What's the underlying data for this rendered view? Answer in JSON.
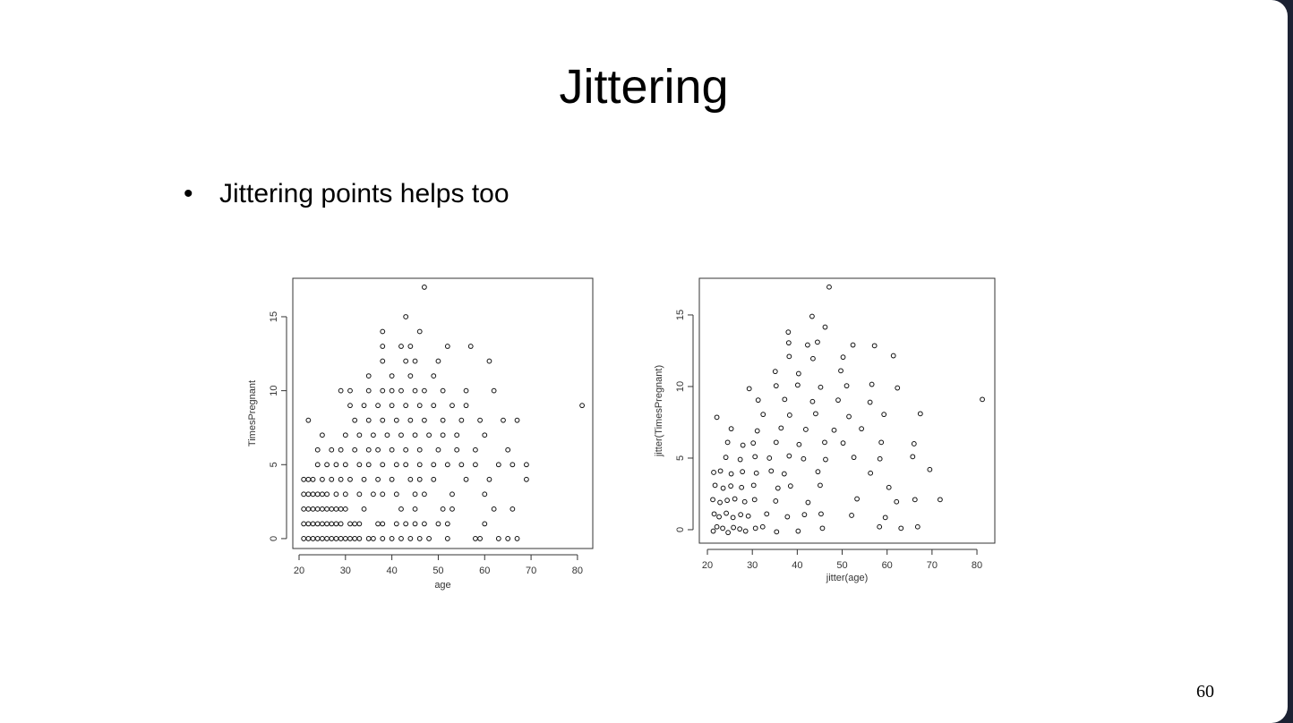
{
  "slide": {
    "title": "Jittering",
    "bullet": "Jittering points helps too",
    "page_number": "60"
  },
  "chart_data": [
    {
      "type": "scatter",
      "xlabel": "age",
      "ylabel": "TimesPregnant",
      "xlim": [
        18.65,
        83.3
      ],
      "ylim": [
        -0.67,
        17.6
      ],
      "xticks": [
        20,
        30,
        40,
        50,
        60,
        70,
        80
      ],
      "yticks": [
        0,
        5,
        10,
        15
      ],
      "x": [
        21,
        22,
        23,
        24,
        25,
        26,
        27,
        28,
        29,
        30,
        31,
        32,
        33,
        35,
        36,
        38,
        40,
        42,
        44,
        46,
        48,
        52,
        58,
        59,
        63,
        65,
        67,
        21,
        22,
        23,
        24,
        25,
        26,
        27,
        28,
        29,
        31,
        32,
        33,
        37,
        38,
        41,
        43,
        45,
        47,
        50,
        52,
        60,
        21,
        22,
        23,
        24,
        25,
        26,
        27,
        28,
        29,
        30,
        34,
        42,
        45,
        51,
        53,
        62,
        66,
        21,
        22,
        23,
        24,
        25,
        26,
        28,
        30,
        33,
        36,
        38,
        41,
        45,
        47,
        53,
        60,
        21,
        22,
        23,
        25,
        27,
        29,
        31,
        34,
        37,
        40,
        44,
        46,
        49,
        56,
        61,
        69,
        24,
        26,
        28,
        30,
        33,
        35,
        38,
        41,
        43,
        46,
        49,
        52,
        55,
        58,
        63,
        66,
        69,
        24,
        27,
        29,
        32,
        35,
        37,
        40,
        43,
        46,
        50,
        54,
        58,
        65,
        25,
        30,
        33,
        36,
        39,
        42,
        45,
        48,
        51,
        54,
        60,
        22,
        32,
        35,
        38,
        41,
        44,
        47,
        51,
        55,
        59,
        64,
        67,
        31,
        34,
        37,
        40,
        43,
        46,
        49,
        53,
        56,
        81,
        29,
        31,
        35,
        38,
        40,
        42,
        45,
        47,
        51,
        56,
        62,
        35,
        40,
        44,
        49,
        38,
        43,
        45,
        50,
        61,
        38,
        42,
        44,
        52,
        57,
        38,
        46,
        43,
        47
      ],
      "y": [
        0,
        0,
        0,
        0,
        0,
        0,
        0,
        0,
        0,
        0,
        0,
        0,
        0,
        0,
        0,
        0,
        0,
        0,
        0,
        0,
        0,
        0,
        0,
        0,
        0,
        0,
        0,
        1,
        1,
        1,
        1,
        1,
        1,
        1,
        1,
        1,
        1,
        1,
        1,
        1,
        1,
        1,
        1,
        1,
        1,
        1,
        1,
        1,
        2,
        2,
        2,
        2,
        2,
        2,
        2,
        2,
        2,
        2,
        2,
        2,
        2,
        2,
        2,
        2,
        2,
        3,
        3,
        3,
        3,
        3,
        3,
        3,
        3,
        3,
        3,
        3,
        3,
        3,
        3,
        3,
        3,
        4,
        4,
        4,
        4,
        4,
        4,
        4,
        4,
        4,
        4,
        4,
        4,
        4,
        4,
        4,
        4,
        5,
        5,
        5,
        5,
        5,
        5,
        5,
        5,
        5,
        5,
        5,
        5,
        5,
        5,
        5,
        5,
        5,
        6,
        6,
        6,
        6,
        6,
        6,
        6,
        6,
        6,
        6,
        6,
        6,
        6,
        7,
        7,
        7,
        7,
        7,
        7,
        7,
        7,
        7,
        7,
        7,
        8,
        8,
        8,
        8,
        8,
        8,
        8,
        8,
        8,
        8,
        8,
        8,
        9,
        9,
        9,
        9,
        9,
        9,
        9,
        9,
        9,
        9,
        10,
        10,
        10,
        10,
        10,
        10,
        10,
        10,
        10,
        10,
        10,
        11,
        11,
        11,
        11,
        12,
        12,
        12,
        12,
        12,
        13,
        13,
        13,
        13,
        13,
        14,
        14,
        15,
        17
      ]
    },
    {
      "type": "scatter",
      "xlabel": "jitter(age)",
      "ylabel": "jitter(TimesPregnant)",
      "xlim": [
        18.2,
        83.98
      ],
      "ylim": [
        -0.94,
        17.56
      ],
      "xticks": [
        20,
        30,
        40,
        50,
        60,
        70,
        80
      ],
      "yticks": [
        0,
        5,
        10,
        15
      ],
      "x": [
        21.3,
        22.1,
        23.4,
        24.6,
        25.8,
        27.2,
        28.5,
        30.7,
        32.3,
        35.4,
        40.2,
        45.6,
        58.3,
        63.1,
        66.8,
        21.5,
        22.6,
        24.2,
        25.7,
        27.4,
        29.1,
        33.2,
        37.8,
        41.6,
        45.3,
        52.1,
        59.6,
        21.2,
        22.8,
        24.4,
        26.1,
        28.3,
        30.5,
        35.2,
        42.4,
        53.3,
        62.1,
        66.2,
        71.8,
        21.7,
        23.5,
        25.2,
        27.6,
        30.3,
        35.7,
        38.5,
        45.1,
        60.4,
        21.4,
        22.9,
        25.3,
        27.8,
        30.9,
        34.2,
        37.1,
        44.6,
        56.3,
        69.5,
        24.1,
        27.3,
        30.6,
        33.8,
        38.2,
        41.4,
        46.3,
        52.6,
        58.4,
        65.7,
        24.5,
        27.9,
        30.2,
        35.3,
        40.4,
        46.1,
        50.2,
        58.7,
        66.0,
        25.3,
        31.1,
        36.4,
        41.9,
        48.2,
        54.3,
        22.1,
        32.4,
        38.3,
        44.1,
        51.5,
        59.3,
        67.4,
        31.3,
        37.2,
        43.4,
        49.1,
        56.2,
        81.2,
        29.3,
        35.3,
        40.1,
        45.2,
        51.0,
        56.6,
        62.3,
        35.1,
        40.3,
        49.7,
        38.2,
        43.5,
        50.2,
        61.4,
        38.1,
        42.3,
        44.5,
        52.4,
        57.2,
        38.0,
        46.2,
        43.3,
        47.1
      ],
      "y": [
        -0.1,
        0.2,
        0.1,
        -0.2,
        0.15,
        0.05,
        -0.1,
        0.1,
        0.2,
        -0.15,
        -0.1,
        0.1,
        0.2,
        0.1,
        0.2,
        1.1,
        0.9,
        1.15,
        0.85,
        1.05,
        0.95,
        1.1,
        0.9,
        1.05,
        1.1,
        1.0,
        0.85,
        2.1,
        1.9,
        2.05,
        2.15,
        1.95,
        2.1,
        2.0,
        1.9,
        2.15,
        1.95,
        2.1,
        2.1,
        3.1,
        2.9,
        3.05,
        2.95,
        3.1,
        2.9,
        3.05,
        3.1,
        2.95,
        4.0,
        4.1,
        3.9,
        4.05,
        3.95,
        4.1,
        3.9,
        4.05,
        3.95,
        4.2,
        5.05,
        4.9,
        5.1,
        5.0,
        5.15,
        4.95,
        4.9,
        5.05,
        4.95,
        5.1,
        6.1,
        5.9,
        6.05,
        6.1,
        5.95,
        6.1,
        6.05,
        6.1,
        6.0,
        7.05,
        6.9,
        7.1,
        7.0,
        6.95,
        7.05,
        7.85,
        8.05,
        8.0,
        8.1,
        7.9,
        8.05,
        8.1,
        9.05,
        9.1,
        8.95,
        9.05,
        8.9,
        9.1,
        9.85,
        10.05,
        10.1,
        9.95,
        10.05,
        10.15,
        9.9,
        11.05,
        10.9,
        11.1,
        12.1,
        11.95,
        12.05,
        12.15,
        13.05,
        12.9,
        13.1,
        12.9,
        12.85,
        13.8,
        14.15,
        14.9,
        16.95
      ]
    }
  ]
}
